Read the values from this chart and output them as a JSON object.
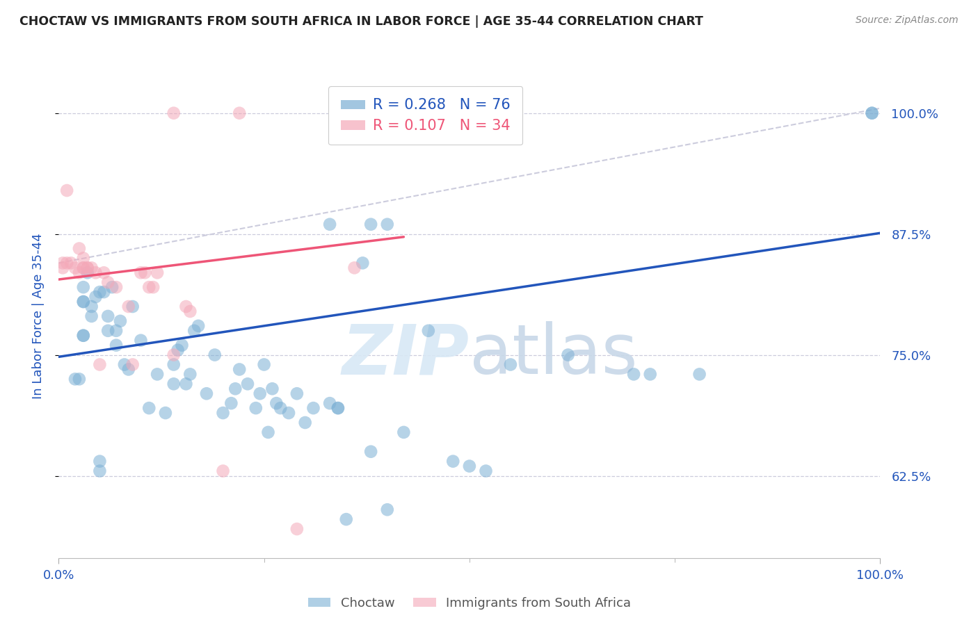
{
  "title": "CHOCTAW VS IMMIGRANTS FROM SOUTH AFRICA IN LABOR FORCE | AGE 35-44 CORRELATION CHART",
  "source": "Source: ZipAtlas.com",
  "ylabel": "In Labor Force | Age 35-44",
  "legend_label1": "Choctaw",
  "legend_label2": "Immigrants from South Africa",
  "R1": 0.268,
  "N1": 76,
  "R2": 0.107,
  "N2": 34,
  "color1": "#7BAFD4",
  "color2": "#F4A8B8",
  "trendline1_color": "#2255BB",
  "trendline2_color": "#EE5577",
  "dashed_line_color": "#CCCCDD",
  "ytick_labels": [
    "62.5%",
    "75.0%",
    "87.5%",
    "100.0%"
  ],
  "ytick_values": [
    0.625,
    0.75,
    0.875,
    1.0
  ],
  "xtick_labels": [
    "0.0%",
    "100.0%"
  ],
  "xtick_values": [
    0.0,
    1.0
  ],
  "xlim": [
    0.0,
    1.0
  ],
  "ylim": [
    0.54,
    1.04
  ],
  "background_color": "#ffffff",
  "grid_color": "#ccccdd",
  "title_color": "#222222",
  "scatter1_x": [
    0.33,
    0.37,
    0.025,
    0.03,
    0.03,
    0.035,
    0.04,
    0.04,
    0.045,
    0.05,
    0.055,
    0.06,
    0.06,
    0.065,
    0.07,
    0.07,
    0.075,
    0.08,
    0.085,
    0.09,
    0.1,
    0.11,
    0.12,
    0.13,
    0.14,
    0.14,
    0.145,
    0.15,
    0.155,
    0.16,
    0.165,
    0.17,
    0.18,
    0.19,
    0.2,
    0.21,
    0.215,
    0.22,
    0.23,
    0.24,
    0.245,
    0.25,
    0.255,
    0.26,
    0.265,
    0.27,
    0.28,
    0.29,
    0.3,
    0.31,
    0.33,
    0.35,
    0.38,
    0.4,
    0.42,
    0.45,
    0.48,
    0.5,
    0.52,
    0.55,
    0.62,
    0.7,
    0.72,
    0.78,
    0.99,
    0.99,
    0.34,
    0.34,
    0.4,
    0.38,
    0.02,
    0.03,
    0.03,
    0.03,
    0.05,
    0.05
  ],
  "scatter1_y": [
    0.885,
    0.845,
    0.725,
    0.77,
    0.805,
    0.835,
    0.79,
    0.8,
    0.81,
    0.815,
    0.815,
    0.775,
    0.79,
    0.82,
    0.76,
    0.775,
    0.785,
    0.74,
    0.735,
    0.8,
    0.765,
    0.695,
    0.73,
    0.69,
    0.72,
    0.74,
    0.755,
    0.76,
    0.72,
    0.73,
    0.775,
    0.78,
    0.71,
    0.75,
    0.69,
    0.7,
    0.715,
    0.735,
    0.72,
    0.695,
    0.71,
    0.74,
    0.67,
    0.715,
    0.7,
    0.695,
    0.69,
    0.71,
    0.68,
    0.695,
    0.7,
    0.58,
    0.65,
    0.59,
    0.67,
    0.775,
    0.64,
    0.635,
    0.63,
    0.74,
    0.75,
    0.73,
    0.73,
    0.73,
    1.0,
    1.0,
    0.695,
    0.695,
    0.885,
    0.885,
    0.725,
    0.77,
    0.805,
    0.82,
    0.63,
    0.64
  ],
  "scatter2_x": [
    0.005,
    0.01,
    0.015,
    0.02,
    0.025,
    0.03,
    0.03,
    0.035,
    0.04,
    0.045,
    0.05,
    0.055,
    0.06,
    0.07,
    0.085,
    0.09,
    0.1,
    0.105,
    0.11,
    0.115,
    0.12,
    0.14,
    0.155,
    0.16,
    0.22,
    0.025,
    0.03,
    0.035,
    0.14,
    0.2,
    0.29,
    0.36,
    0.005,
    0.01
  ],
  "scatter2_y": [
    0.845,
    0.92,
    0.845,
    0.84,
    0.86,
    0.85,
    0.84,
    0.84,
    0.84,
    0.835,
    0.74,
    0.835,
    0.825,
    0.82,
    0.8,
    0.74,
    0.835,
    0.835,
    0.82,
    0.82,
    0.835,
    0.75,
    0.8,
    0.795,
    1.0,
    0.835,
    0.84,
    0.84,
    1.0,
    0.63,
    0.57,
    0.84,
    0.84,
    0.845
  ],
  "trendline1_x": [
    0.0,
    1.0
  ],
  "trendline1_y": [
    0.748,
    0.876
  ],
  "trendline2_x": [
    0.0,
    0.42
  ],
  "trendline2_y": [
    0.828,
    0.872
  ],
  "dashed_line_x": [
    0.0,
    1.0
  ],
  "dashed_line_y": [
    0.845,
    1.005
  ]
}
